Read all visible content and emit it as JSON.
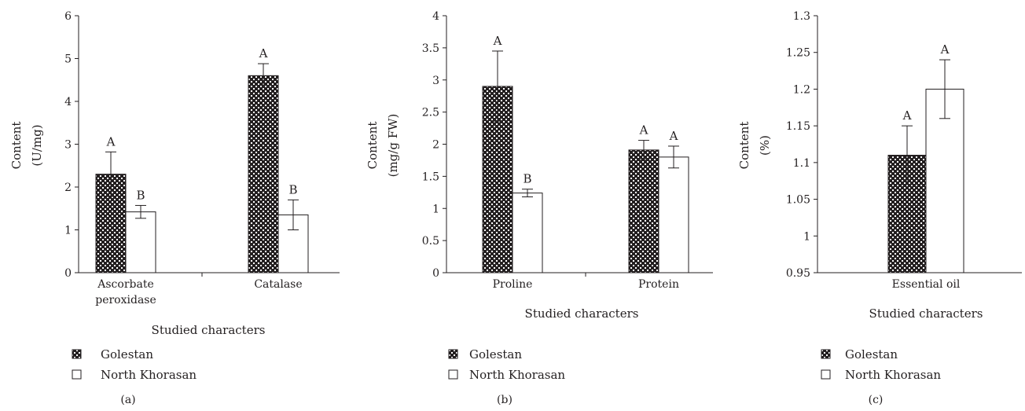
{
  "chart_data": [
    {
      "type": "bar",
      "panel_label": "(a)",
      "categories": [
        "Ascorbate peroxidase",
        "Catalase"
      ],
      "category_lines": [
        [
          "Ascorbate",
          "peroxidase"
        ],
        [
          "Catalase"
        ]
      ],
      "series": [
        {
          "name": "Golestan",
          "values": [
            2.3,
            4.6
          ],
          "errors": [
            0.52,
            0.28
          ],
          "letters": [
            "A",
            "A"
          ],
          "pattern": "checker"
        },
        {
          "name": "North Khorasan",
          "values": [
            1.42,
            1.35
          ],
          "errors": [
            0.15,
            0.35
          ],
          "letters": [
            "B",
            "B"
          ],
          "pattern": "white"
        }
      ],
      "ylim": [
        0,
        6
      ],
      "yticks": [
        0,
        1,
        2,
        3,
        4,
        5,
        6
      ],
      "ytick_labels": [
        "0",
        "1",
        "2",
        "3",
        "4",
        "5",
        "6"
      ],
      "ylabel": [
        "Content",
        "(U/mg)"
      ],
      "xlabel": "Studied characters",
      "grid": false,
      "legend": [
        "Golestan",
        "North Khorasan"
      ],
      "legend_position": "bottom-left"
    },
    {
      "type": "bar",
      "panel_label": "(b)",
      "categories": [
        "Proline",
        "Protein"
      ],
      "category_lines": [
        [
          "Proline"
        ],
        [
          "Protein"
        ]
      ],
      "series": [
        {
          "name": "Golestan",
          "values": [
            2.9,
            1.91
          ],
          "errors": [
            0.55,
            0.15
          ],
          "letters": [
            "A",
            "A"
          ],
          "pattern": "checker"
        },
        {
          "name": "North Khorasan",
          "values": [
            1.24,
            1.8
          ],
          "errors": [
            0.06,
            0.17
          ],
          "letters": [
            "B",
            "A"
          ],
          "pattern": "white"
        }
      ],
      "ylim": [
        0,
        4
      ],
      "yticks": [
        0,
        0.5,
        1,
        1.5,
        2,
        2.5,
        3,
        3.5,
        4
      ],
      "ytick_labels": [
        "0",
        "0.5",
        "1",
        "1.5",
        "2",
        "2.5",
        "3",
        "3.5",
        "4"
      ],
      "ylabel": [
        "Content",
        "(mg/g FW)"
      ],
      "xlabel": "Studied characters",
      "grid": false,
      "legend": [
        "Golestan",
        "North Khorasan"
      ],
      "legend_position": "bottom-left"
    },
    {
      "type": "bar",
      "panel_label": "(c)",
      "categories": [
        "Essential oil"
      ],
      "category_lines": [
        [
          "Essential oil"
        ]
      ],
      "series": [
        {
          "name": "Golestan",
          "values": [
            1.11
          ],
          "errors": [
            0.04
          ],
          "letters": [
            "A"
          ],
          "pattern": "checker"
        },
        {
          "name": "North Khorasan",
          "values": [
            1.2
          ],
          "errors": [
            0.04
          ],
          "letters": [
            "A"
          ],
          "pattern": "white"
        }
      ],
      "ylim": [
        0.95,
        1.3
      ],
      "yticks": [
        0.95,
        1,
        1.05,
        1.1,
        1.15,
        1.2,
        1.25,
        1.3
      ],
      "ytick_labels": [
        "0.95",
        "1",
        "1.05",
        "1.1",
        "1.15",
        "1.2",
        "1.25",
        "1.3"
      ],
      "ylabel": [
        "Content",
        "(%)"
      ],
      "xlabel": "Studied characters",
      "grid": false,
      "legend": [
        "Golestan",
        "North Khorasan"
      ],
      "legend_position": "bottom-left"
    }
  ],
  "colors": {
    "ink": "#231f20",
    "pattern_dark": "#231f20",
    "pattern_light": "#ffffff"
  }
}
